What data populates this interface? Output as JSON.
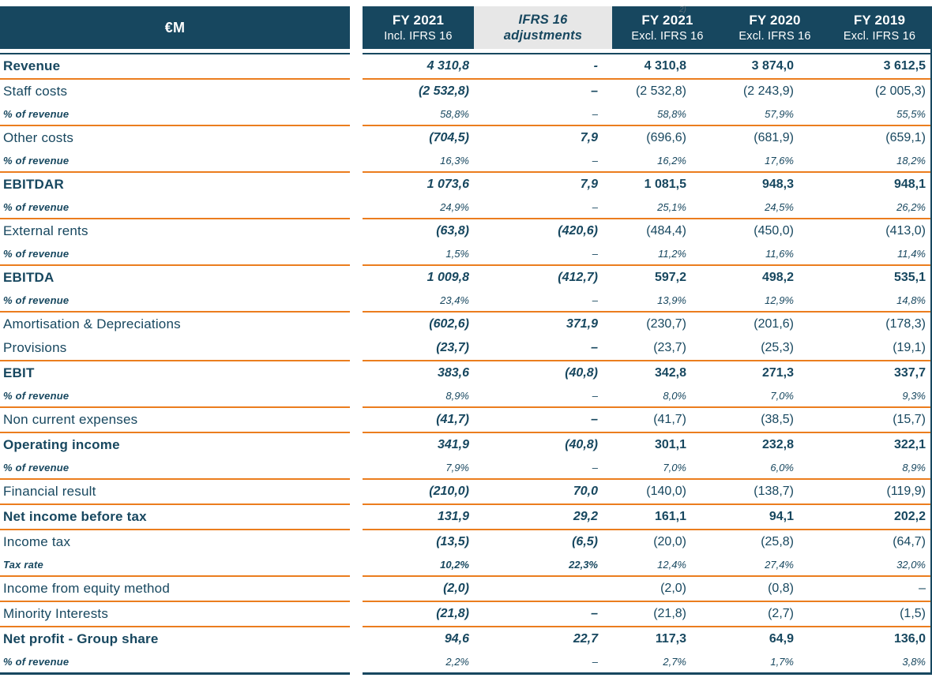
{
  "colors": {
    "navy": "#17475F",
    "orange": "#EB7D1E",
    "header_gray": "#E7E7E7",
    "header_text": "#FFFFFF"
  },
  "header": {
    "unit_label": "€M",
    "footnote_marker": "2)",
    "columns": [
      {
        "line1": "FY 2021",
        "line2": "Incl. IFRS 16"
      },
      {
        "line1": "IFRS 16",
        "line2": "adjustments"
      },
      {
        "line1": "FY 2021",
        "line2": "Excl. IFRS 16"
      },
      {
        "line1": "FY 2020",
        "line2": "Excl. IFRS 16"
      },
      {
        "line1": "FY 2019",
        "line2": "Excl. IFRS 16"
      }
    ]
  },
  "rows": [
    {
      "label": "Revenue",
      "kind": "bold",
      "c12bold": true,
      "values": [
        "4 310,8",
        "-",
        "4 310,8",
        "3 874,0",
        "3 612,5"
      ],
      "divider_after": true
    },
    {
      "label": "Staff costs",
      "kind": "normal",
      "c12bold": true,
      "values": [
        "(2 532,8)",
        "–",
        "(2 532,8)",
        "(2 243,9)",
        "(2 005,3)"
      ],
      "divider_after": false
    },
    {
      "label": "% of revenue",
      "kind": "pct",
      "c12bold": false,
      "values": [
        "58,8%",
        "–",
        "58,8%",
        "57,9%",
        "55,5%"
      ],
      "divider_after": true
    },
    {
      "label": "Other costs",
      "kind": "normal",
      "c12bold": true,
      "values": [
        "(704,5)",
        "7,9",
        "(696,6)",
        "(681,9)",
        "(659,1)"
      ],
      "divider_after": false
    },
    {
      "label": "% of revenue",
      "kind": "pct",
      "c12bold": false,
      "values": [
        "16,3%",
        "–",
        "16,2%",
        "17,6%",
        "18,2%"
      ],
      "divider_after": true
    },
    {
      "label": "EBITDAR",
      "kind": "bold",
      "c12bold": true,
      "values": [
        "1 073,6",
        "7,9",
        "1 081,5",
        "948,3",
        "948,1"
      ],
      "divider_after": false
    },
    {
      "label": "% of revenue",
      "kind": "pct",
      "c12bold": false,
      "values": [
        "24,9%",
        "–",
        "25,1%",
        "24,5%",
        "26,2%"
      ],
      "divider_after": true
    },
    {
      "label": "External rents",
      "kind": "normal",
      "c12bold": true,
      "values": [
        "(63,8)",
        "(420,6)",
        "(484,4)",
        "(450,0)",
        "(413,0)"
      ],
      "divider_after": false
    },
    {
      "label": "% of revenue",
      "kind": "pct",
      "c12bold": false,
      "values": [
        "1,5%",
        "–",
        "11,2%",
        "11,6%",
        "11,4%"
      ],
      "divider_after": true
    },
    {
      "label": "EBITDA",
      "kind": "bold",
      "c12bold": true,
      "values": [
        "1 009,8",
        "(412,7)",
        "597,2",
        "498,2",
        "535,1"
      ],
      "divider_after": false
    },
    {
      "label": "% of revenue",
      "kind": "pct",
      "c12bold": false,
      "values": [
        "23,4%",
        "–",
        "13,9%",
        "12,9%",
        "14,8%"
      ],
      "divider_after": true
    },
    {
      "label": "Amortisation & Depreciations",
      "kind": "normal",
      "c12bold": true,
      "values": [
        "(602,6)",
        "371,9",
        "(230,7)",
        "(201,6)",
        "(178,3)"
      ],
      "divider_after": false
    },
    {
      "label": "Provisions",
      "kind": "normal",
      "c12bold": true,
      "values": [
        "(23,7)",
        "–",
        "(23,7)",
        "(25,3)",
        "(19,1)"
      ],
      "divider_after": true
    },
    {
      "label": "EBIT",
      "kind": "bold",
      "c12bold": true,
      "values": [
        "383,6",
        "(40,8)",
        "342,8",
        "271,3",
        "337,7"
      ],
      "divider_after": false
    },
    {
      "label": "% of revenue",
      "kind": "pct",
      "c12bold": false,
      "values": [
        "8,9%",
        "–",
        "8,0%",
        "7,0%",
        "9,3%"
      ],
      "divider_after": true
    },
    {
      "label": "Non current expenses",
      "kind": "normal",
      "c12bold": true,
      "values": [
        "(41,7)",
        "–",
        "(41,7)",
        "(38,5)",
        "(15,7)"
      ],
      "divider_after": true
    },
    {
      "label": "Operating income",
      "kind": "bold",
      "c12bold": true,
      "values": [
        "341,9",
        "(40,8)",
        "301,1",
        "232,8",
        "322,1"
      ],
      "divider_after": false
    },
    {
      "label": "% of revenue",
      "kind": "pct",
      "c12bold": false,
      "values": [
        "7,9%",
        "–",
        "7,0%",
        "6,0%",
        "8,9%"
      ],
      "divider_after": true
    },
    {
      "label": "Financial result",
      "kind": "normal",
      "c12bold": true,
      "values": [
        "(210,0)",
        "70,0",
        "(140,0)",
        "(138,7)",
        "(119,9)"
      ],
      "divider_after": true
    },
    {
      "label": "Net income before tax",
      "kind": "bold",
      "c12bold": true,
      "values": [
        "131,9",
        "29,2",
        "161,1",
        "94,1",
        "202,2"
      ],
      "divider_after": true
    },
    {
      "label": "Income tax",
      "kind": "normal",
      "c12bold": true,
      "values": [
        "(13,5)",
        "(6,5)",
        "(20,0)",
        "(25,8)",
        "(64,7)"
      ],
      "divider_after": false
    },
    {
      "label": "Tax rate",
      "kind": "pct",
      "c12bold": true,
      "values": [
        "10,2%",
        "22,3%",
        "12,4%",
        "27,4%",
        "32,0%"
      ],
      "divider_after": true
    },
    {
      "label": "Income from equity method",
      "kind": "normal",
      "c12bold": true,
      "values": [
        "(2,0)",
        "",
        "(2,0)",
        "(0,8)",
        "–"
      ],
      "divider_after": true
    },
    {
      "label": "Minority Interests",
      "kind": "normal",
      "c12bold": true,
      "values": [
        "(21,8)",
        "–",
        "(21,8)",
        "(2,7)",
        "(1,5)"
      ],
      "divider_after": true
    },
    {
      "label": "Net profit - Group share",
      "kind": "bold",
      "c12bold": true,
      "values": [
        "94,6",
        "22,7",
        "117,3",
        "64,9",
        "136,0"
      ],
      "divider_after": false
    },
    {
      "label": "% of revenue",
      "kind": "pct",
      "c12bold": false,
      "values": [
        "2,2%",
        "–",
        "2,7%",
        "1,7%",
        "3,8%"
      ],
      "divider_after": false
    }
  ]
}
